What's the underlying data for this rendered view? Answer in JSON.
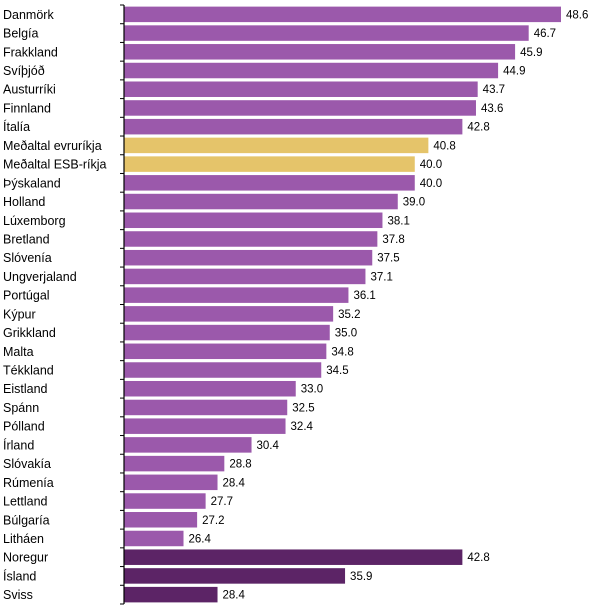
{
  "chart_data": {
    "type": "bar",
    "orientation": "horizontal",
    "categories": [
      "Danmörk",
      "Belgía",
      "Frakkland",
      "Svíþjóð",
      "Austurríki",
      "Finnland",
      "Ítalía",
      "Meðaltal evruríkja",
      "Meðaltal ESB-ríkja",
      "Þýskaland",
      "Holland",
      "Lúxemborg",
      "Bretland",
      "Slóvenía",
      "Ungverjaland",
      "Portúgal",
      "Kýpur",
      "Grikkland",
      "Malta",
      "Tékkland",
      "Eistland",
      "Spánn",
      "Pólland",
      "Írland",
      "Slóvakía",
      "Rúmenía",
      "Lettland",
      "Búlgaría",
      "Litháen",
      "Noregur",
      "Ísland",
      "Sviss"
    ],
    "values": [
      48.6,
      46.7,
      45.9,
      44.9,
      43.7,
      43.6,
      42.8,
      40.8,
      40.0,
      40.0,
      39.0,
      38.1,
      37.8,
      37.5,
      37.1,
      36.1,
      35.2,
      35.0,
      34.8,
      34.5,
      33.0,
      32.5,
      32.4,
      30.4,
      28.8,
      28.4,
      27.7,
      27.2,
      26.4,
      42.8,
      35.9,
      28.4
    ],
    "value_labels": [
      "48.6",
      "46.7",
      "45.9",
      "44.9",
      "43.7",
      "43.6",
      "42.8",
      "40.8",
      "40.0",
      "40.0",
      "39.0",
      "38.1",
      "37.8",
      "37.5",
      "37.1",
      "36.1",
      "35.2",
      "35.0",
      "34.8",
      "34.5",
      "33.0",
      "32.5",
      "32.4",
      "30.4",
      "28.8",
      "28.4",
      "27.7",
      "27.2",
      "26.4",
      "42.8",
      "35.9",
      "28.4"
    ],
    "groups": [
      "eu",
      "eu",
      "eu",
      "eu",
      "eu",
      "eu",
      "eu",
      "avg",
      "avg",
      "eu",
      "eu",
      "eu",
      "eu",
      "eu",
      "eu",
      "eu",
      "eu",
      "eu",
      "eu",
      "eu",
      "eu",
      "eu",
      "eu",
      "eu",
      "eu",
      "eu",
      "eu",
      "eu",
      "eu",
      "non-eu",
      "non-eu",
      "non-eu"
    ],
    "colors": {
      "eu": "#9b59ab",
      "avg": "#e5c46a",
      "non-eu": "#5c2466",
      "axis": "#000000"
    },
    "xlim": [
      22.9,
      48.6
    ],
    "grid": false,
    "legend": "none"
  }
}
